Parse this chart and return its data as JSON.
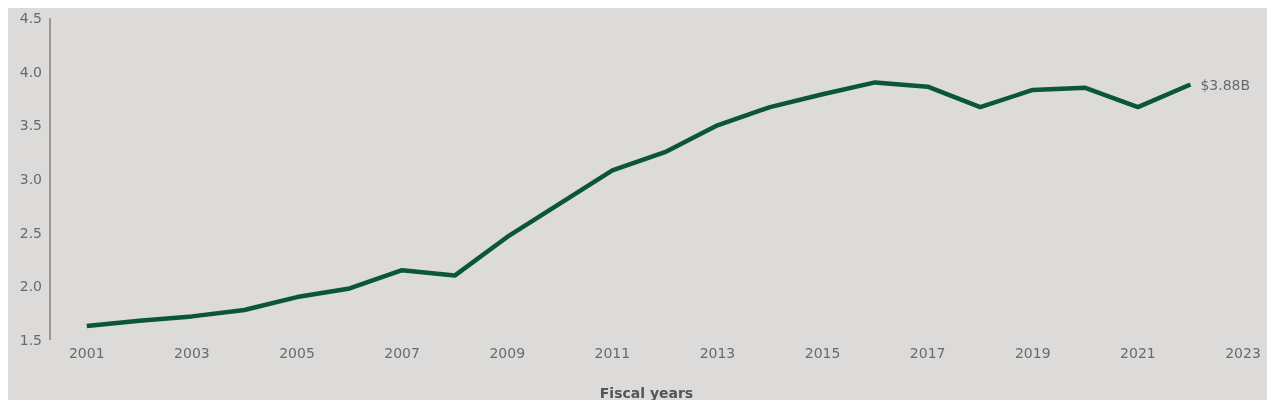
{
  "chart_data": {
    "type": "line",
    "xlabel": "Fiscal years",
    "x": [
      2001,
      2002,
      2003,
      2004,
      2005,
      2006,
      2007,
      2008,
      2009,
      2010,
      2011,
      2012,
      2013,
      2014,
      2015,
      2016,
      2017,
      2018,
      2019,
      2020,
      2021,
      2022
    ],
    "series": [
      {
        "color": "#0b5638",
        "values": [
          1.63,
          1.68,
          1.72,
          1.78,
          1.9,
          1.98,
          2.15,
          2.1,
          2.46,
          2.77,
          3.08,
          3.25,
          3.5,
          3.67,
          3.79,
          3.9,
          3.86,
          3.67,
          3.83,
          3.85,
          3.67,
          3.88
        ]
      }
    ],
    "xlim": [
      2000.3,
      2023
    ],
    "xticks": [
      2001,
      2003,
      2005,
      2007,
      2009,
      2011,
      2013,
      2015,
      2017,
      2019,
      2021,
      2023
    ],
    "ylim": [
      1.5,
      4.5
    ],
    "yticks": [
      {
        "value": 1.5,
        "label": "1.5"
      },
      {
        "value": 2,
        "label": "2.0"
      },
      {
        "value": 2.5,
        "label": "2.5"
      },
      {
        "value": 3,
        "label": "3.0"
      },
      {
        "value": 3.5,
        "label": "3.5"
      },
      {
        "value": 4,
        "label": "4.0"
      },
      {
        "value": 4.5,
        "label": "4.5"
      }
    ],
    "annotations": [
      {
        "text": "$3.88B",
        "x": 2022,
        "y": 3.88
      }
    ],
    "grid": false,
    "legend": false,
    "marker": "none",
    "line_style": "solid"
  }
}
